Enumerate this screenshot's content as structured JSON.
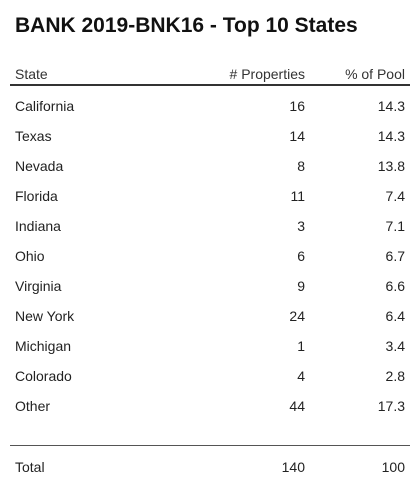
{
  "chart_data": {
    "type": "table",
    "title": "BANK 2019-BNK16 - Top 10 States",
    "columns": [
      "State",
      "# Properties",
      "% of Pool"
    ],
    "rows": [
      {
        "state": "California",
        "properties": "16",
        "pool": "14.3"
      },
      {
        "state": "Texas",
        "properties": "14",
        "pool": "14.3"
      },
      {
        "state": "Nevada",
        "properties": "8",
        "pool": "13.8"
      },
      {
        "state": "Florida",
        "properties": "11",
        "pool": "7.4"
      },
      {
        "state": "Indiana",
        "properties": "3",
        "pool": "7.1"
      },
      {
        "state": "Ohio",
        "properties": "6",
        "pool": "6.7"
      },
      {
        "state": "Virginia",
        "properties": "9",
        "pool": "6.6"
      },
      {
        "state": "New York",
        "properties": "24",
        "pool": "6.4"
      },
      {
        "state": "Michigan",
        "properties": "1",
        "pool": "3.4"
      },
      {
        "state": "Colorado",
        "properties": "4",
        "pool": "2.8"
      },
      {
        "state": "Other",
        "properties": "44",
        "pool": "17.3"
      }
    ],
    "total": {
      "label": "Total",
      "properties": "140",
      "pool": "100"
    }
  }
}
